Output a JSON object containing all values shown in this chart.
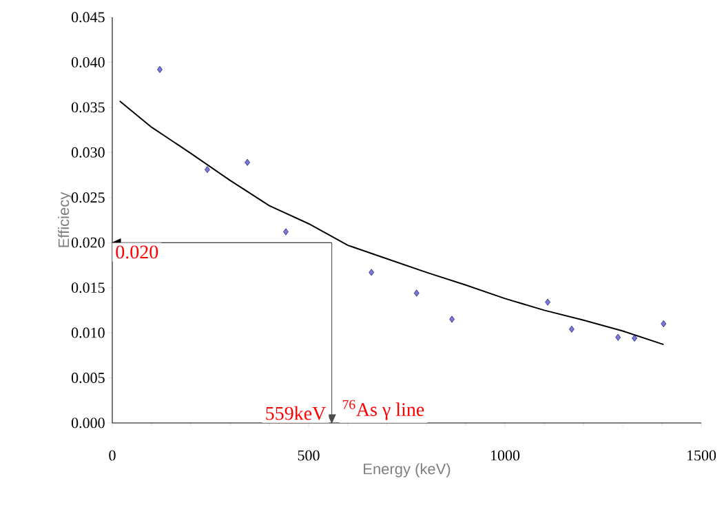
{
  "chart_data": {
    "type": "scatter",
    "xlabel": "Energy (keV)",
    "ylabel": "Efficiecy",
    "xlim": [
      0,
      1500
    ],
    "ylim": [
      0,
      0.045
    ],
    "xticks": [
      0,
      500,
      1000,
      1500
    ],
    "yticks": [
      {
        "value": 0,
        "label": "0.000"
      },
      {
        "value": 0.005,
        "label": "0.005"
      },
      {
        "value": 0.01,
        "label": "0.010"
      },
      {
        "value": 0.015,
        "label": "0.015"
      },
      {
        "value": 0.02,
        "label": "0.020"
      },
      {
        "value": 0.025,
        "label": "0.025"
      },
      {
        "value": 0.03,
        "label": "0.030"
      },
      {
        "value": 0.035,
        "label": "0.035"
      },
      {
        "value": 0.04,
        "label": "0.040"
      },
      {
        "value": 0.045,
        "label": "0.045"
      }
    ],
    "marker": "diamond",
    "grid": false,
    "series": [
      {
        "color": "#7b7bd6",
        "x": [
          121,
          242,
          344,
          442,
          660,
          775,
          865,
          1109,
          1170,
          1288,
          1330,
          1404
        ],
        "values": [
          0.0392,
          0.0281,
          0.0289,
          0.0212,
          0.0167,
          0.0144,
          0.0115,
          0.0134,
          0.0104,
          0.0095,
          0.0094,
          0.011
        ]
      },
      {
        "type": "line",
        "marker": "none",
        "color": "#000000",
        "x": [
          19,
          100,
          200,
          300,
          400,
          500,
          600,
          700,
          800,
          900,
          1000,
          1100,
          1200,
          1300,
          1404
        ],
        "values": [
          0.0357,
          0.0328,
          0.0299,
          0.0269,
          0.0241,
          0.0221,
          0.0197,
          0.0182,
          0.0167,
          0.0153,
          0.0138,
          0.0125,
          0.0114,
          0.0102,
          0.0087
        ]
      }
    ],
    "ref_lines": [
      {
        "axis": "y",
        "value": 0.02,
        "label": "0.020"
      },
      {
        "axis": "x",
        "value": 559,
        "label": "559keV"
      }
    ],
    "annotations": [
      "$^{76}$As γ line"
    ]
  }
}
